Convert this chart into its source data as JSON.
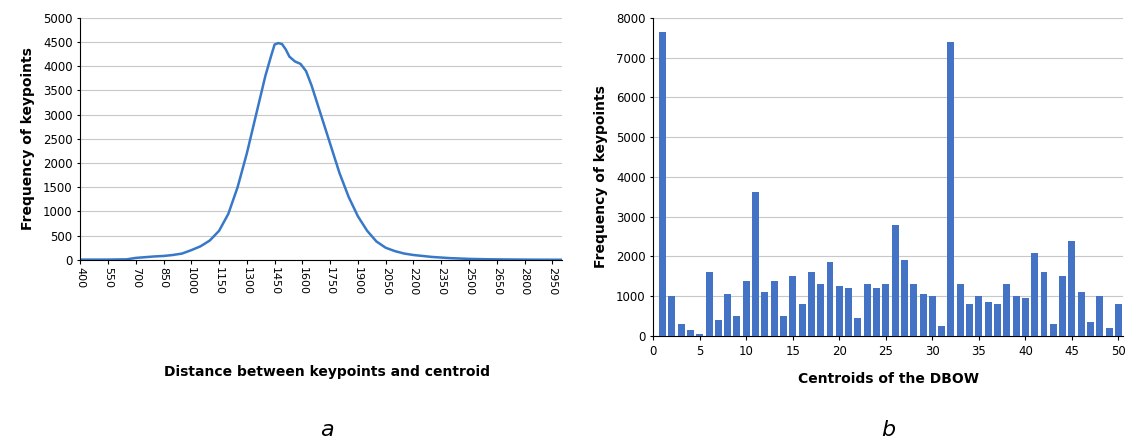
{
  "left_chart": {
    "x_ticks": [
      400,
      550,
      700,
      850,
      1000,
      1150,
      1300,
      1450,
      1600,
      1750,
      1900,
      2050,
      2200,
      2350,
      2500,
      2650,
      2800,
      2950
    ],
    "x_min": 400,
    "x_max": 3000,
    "y_min": 0,
    "y_max": 5000,
    "y_ticks": [
      0,
      500,
      1000,
      1500,
      2000,
      2500,
      3000,
      3500,
      4000,
      4500,
      5000
    ],
    "xlabel": "Distance between keypoints and centroid",
    "ylabel": "Frequency of keypoints",
    "label_a": "a",
    "line_color": "#3878C8",
    "curve_x": [
      400,
      450,
      500,
      550,
      600,
      650,
      700,
      750,
      800,
      850,
      900,
      950,
      1000,
      1050,
      1100,
      1150,
      1200,
      1250,
      1300,
      1350,
      1400,
      1430,
      1450,
      1470,
      1490,
      1510,
      1530,
      1560,
      1590,
      1620,
      1650,
      1700,
      1750,
      1800,
      1850,
      1900,
      1950,
      2000,
      2050,
      2100,
      2150,
      2200,
      2300,
      2400,
      2500,
      2600,
      2700,
      2800,
      2900,
      3000
    ],
    "curve_y": [
      5,
      5,
      5,
      5,
      8,
      10,
      40,
      55,
      70,
      80,
      100,
      130,
      200,
      280,
      400,
      600,
      950,
      1500,
      2200,
      3000,
      3800,
      4200,
      4450,
      4480,
      4460,
      4350,
      4200,
      4100,
      4050,
      3900,
      3600,
      3000,
      2400,
      1800,
      1300,
      900,
      600,
      380,
      250,
      180,
      130,
      100,
      60,
      35,
      20,
      12,
      8,
      5,
      3,
      2
    ]
  },
  "right_chart": {
    "bar_values": [
      7650,
      1000,
      300,
      150,
      50,
      1600,
      400,
      1050,
      500,
      1380,
      3620,
      1100,
      1380,
      500,
      1500,
      800,
      1600,
      1300,
      1850,
      1250,
      1200,
      450,
      1300,
      1200,
      1300,
      2800,
      1900,
      1300,
      1050,
      1000,
      250,
      7400,
      1300,
      800,
      1000,
      850,
      800,
      1300,
      1000,
      950,
      2100,
      1600,
      300,
      1500,
      2400,
      1100,
      350,
      1000,
      200,
      800
    ],
    "x_min": 0,
    "x_max": 50,
    "y_min": 0,
    "y_max": 8000,
    "y_ticks": [
      0,
      1000,
      2000,
      3000,
      4000,
      5000,
      6000,
      7000,
      8000
    ],
    "x_ticks": [
      0,
      5,
      10,
      15,
      20,
      25,
      30,
      35,
      40,
      45,
      50
    ],
    "xlabel": "Centroids of the DBOW",
    "ylabel": "Frequency of keypoints",
    "label_b": "b",
    "bar_color": "#4472C4"
  },
  "background_color": "#ffffff",
  "grid_color": "#c8c8c8",
  "line_width": 1.8
}
